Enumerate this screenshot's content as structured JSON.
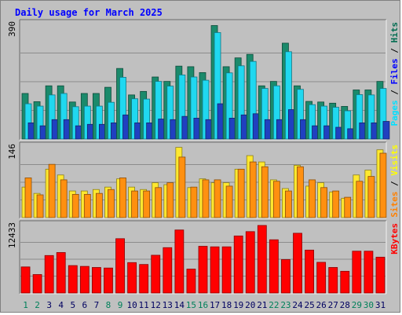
{
  "chart_data": {
    "type": "bar",
    "title": "Daily usage for March 2025",
    "categories": [
      "1",
      "2",
      "3",
      "4",
      "5",
      "6",
      "7",
      "8",
      "9",
      "10",
      "11",
      "12",
      "13",
      "14",
      "15",
      "16",
      "17",
      "18",
      "19",
      "20",
      "21",
      "22",
      "23",
      "24",
      "25",
      "26",
      "27",
      "28",
      "29",
      "30",
      "31"
    ],
    "weekend_days": [
      "1",
      "2",
      "8",
      "9",
      "15",
      "16",
      "22",
      "23",
      "29",
      "30"
    ],
    "panels": [
      {
        "id": "hits-files-pages",
        "max_label": "390",
        "ymax": 390,
        "legend": [
          {
            "text": "Pages",
            "color": "#00e0ff"
          },
          {
            "text": " / ",
            "color": "#000000"
          },
          {
            "text": "Files",
            "color": "#0000ff"
          },
          {
            "text": " / ",
            "color": "#000000"
          },
          {
            "text": "Hits",
            "color": "#006c50"
          }
        ],
        "series": [
          {
            "name": "Hits",
            "color": "#1b8a6b",
            "values": [
              155,
              127,
              181,
              181,
              126,
              155,
              155,
              176,
              240,
              150,
              162,
              211,
              196,
              248,
              246,
              226,
              386,
              246,
              276,
              288,
              181,
              196,
              326,
              181,
              128,
              126,
              122,
              111,
              167,
              167,
              196
            ]
          },
          {
            "name": "Files",
            "color": "#20d8f0",
            "values": [
              120,
              112,
              150,
              155,
              110,
              112,
              112,
              125,
              210,
              137,
              136,
              196,
              180,
              218,
              211,
              200,
              362,
              225,
              249,
              264,
              172,
              181,
              297,
              169,
              117,
              112,
              108,
              96,
              151,
              150,
              172
            ]
          },
          {
            "name": "Pages",
            "color": "#2040c0",
            "values": [
              55,
              45,
              66,
              66,
              45,
              50,
              50,
              55,
              82,
              55,
              55,
              68,
              66,
              77,
              71,
              66,
              120,
              71,
              82,
              86,
              66,
              66,
              100,
              66,
              45,
              45,
              40,
              35,
              55,
              55,
              60
            ]
          }
        ]
      },
      {
        "id": "visits-sites",
        "max_label": "146",
        "ymax": 146,
        "legend": [
          {
            "text": "Sites",
            "color": "#ff8000"
          },
          {
            "text": " / ",
            "color": "#000000"
          },
          {
            "text": "Visits",
            "color": "#ffff00"
          }
        ],
        "series": [
          {
            "name": "Visits",
            "color": "#ffe830",
            "values": [
              63,
              50,
              100,
              88,
              55,
              55,
              58,
              63,
              80,
              63,
              58,
              72,
              68,
              145,
              62,
              80,
              72,
              72,
              100,
              128,
              115,
              78,
              60,
              108,
              65,
              72,
              53,
              40,
              88,
              98,
              140
            ]
          },
          {
            "name": "Sites",
            "color": "#ff9010",
            "values": [
              82,
              47,
              110,
              78,
              48,
              48,
              50,
              58,
              82,
              55,
              55,
              62,
              72,
              125,
              63,
              78,
              78,
              65,
              100,
              115,
              105,
              75,
              55,
              105,
              78,
              62,
              55,
              42,
              75,
              85,
              133
            ]
          }
        ]
      },
      {
        "id": "kbytes",
        "max_label": "12433",
        "ymax": 12433,
        "legend": [
          {
            "text": "KBytes",
            "color": "#ff0000"
          }
        ],
        "series": [
          {
            "name": "KBytes",
            "color": "#ff0000",
            "values": [
              4800,
              3400,
              6900,
              7450,
              5050,
              4900,
              4700,
              4600,
              10000,
              5600,
              5250,
              6950,
              8350,
              11600,
              4400,
              8600,
              8500,
              8500,
              10500,
              11300,
              12433,
              9800,
              6150,
              11000,
              7900,
              5650,
              4700,
              4000,
              7700,
              7700,
              6600
            ]
          }
        ]
      }
    ]
  }
}
